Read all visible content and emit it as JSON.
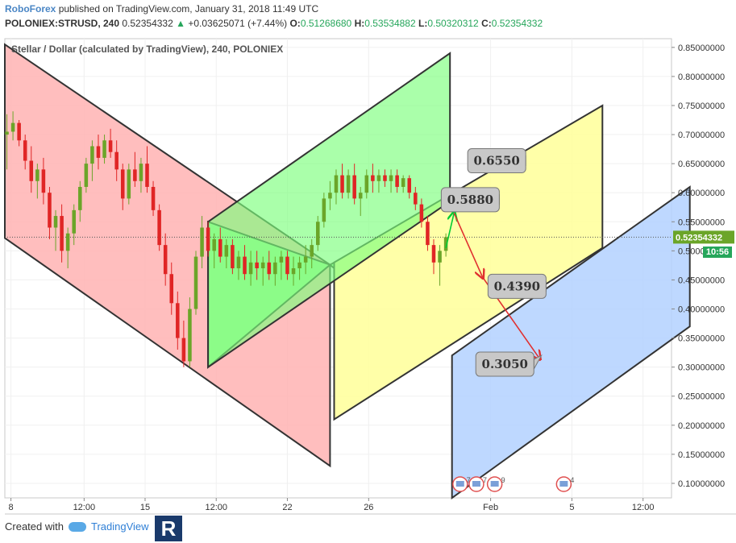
{
  "header": {
    "brand": "RoboForex",
    "published": "published on TradingView.com, January 31, 2018 11:49 UTC",
    "symbol": "POLONIEX:STRUSD, 240",
    "last": "0.52354332",
    "change_arrow": "▲",
    "change": "+0.03625071 (+7.44%)",
    "o_label": "O:",
    "o_value": "0.51268680",
    "h_label": "H:",
    "h_value": "0.53534882",
    "l_label": "L:",
    "l_value": "0.50320312",
    "c_label": "C:",
    "c_value": "0.52354332"
  },
  "chart_data": {
    "type": "candlestick",
    "title": "Stellar / Dollar (calculated by TradingView), 240, POLONIEX",
    "price_axis": {
      "ticks": [
        "0.85000000",
        "0.80000000",
        "0.75000000",
        "0.70000000",
        "0.65000000",
        "0.60000000",
        "0.55000000",
        "0.50000000",
        "0.45000000",
        "0.40000000",
        "0.35000000",
        "0.30000000",
        "0.25000000",
        "0.20000000",
        "0.15000000",
        "0.10000000"
      ],
      "range": [
        0.075,
        0.865
      ],
      "current_price": "0.52354332",
      "current_price_value": 0.52354332,
      "countdown": "10:56"
    },
    "time_axis": {
      "ticks": [
        {
          "label": "8",
          "day": 8.4
        },
        {
          "label": "12:00",
          "day": 12.0
        },
        {
          "label": "15",
          "day": 15.0
        },
        {
          "label": "12:00",
          "day": 18.5
        },
        {
          "label": "22",
          "day": 22.0
        },
        {
          "label": "26",
          "day": 26.0
        },
        {
          "label": "Feb",
          "day": 32.0
        },
        {
          "label": "5",
          "day": 36.0
        },
        {
          "label": "12:00",
          "day": 39.5
        }
      ],
      "range": [
        8.1,
        40.9
      ]
    },
    "channels": [
      {
        "name": "red",
        "color": "#ffb3b3",
        "points": [
          [
            8.1,
            0.855
          ],
          [
            24.1,
            0.476
          ],
          [
            24.1,
            0.13
          ],
          [
            8.1,
            0.522
          ]
        ]
      },
      {
        "name": "green",
        "color": "#99ff99",
        "points": [
          [
            18.1,
            0.55
          ],
          [
            24.1,
            0.476
          ],
          [
            24.3,
            0.48
          ],
          [
            24.3,
            0.47
          ],
          [
            24.1,
            0.476
          ],
          [
            18.1,
            0.3
          ]
        ]
      },
      {
        "name": "yellow",
        "color": "#ffff99",
        "points": [
          [
            24.3,
            0.48
          ],
          [
            37.5,
            0.75
          ],
          [
            37.5,
            0.505
          ],
          [
            24.3,
            0.21
          ]
        ]
      },
      {
        "name": "blue",
        "color": "#b3d1ff",
        "points": [
          [
            30.1,
            0.32
          ],
          [
            41.8,
            0.61
          ],
          [
            41.8,
            0.37
          ],
          [
            30.1,
            0.075
          ]
        ]
      }
    ],
    "green_box_top": [
      30.0,
      0.84
    ],
    "candles": [
      {
        "day": 8.2,
        "o": 0.7,
        "h": 0.735,
        "l": 0.64,
        "c": 0.705
      },
      {
        "day": 8.5,
        "o": 0.705,
        "h": 0.74,
        "l": 0.69,
        "c": 0.72
      },
      {
        "day": 8.8,
        "o": 0.72,
        "h": 0.725,
        "l": 0.68,
        "c": 0.69
      },
      {
        "day": 9.1,
        "o": 0.69,
        "h": 0.7,
        "l": 0.64,
        "c": 0.655
      },
      {
        "day": 9.4,
        "o": 0.655,
        "h": 0.68,
        "l": 0.6,
        "c": 0.62
      },
      {
        "day": 9.7,
        "o": 0.62,
        "h": 0.65,
        "l": 0.59,
        "c": 0.64
      },
      {
        "day": 10.0,
        "o": 0.64,
        "h": 0.66,
        "l": 0.58,
        "c": 0.6
      },
      {
        "day": 10.3,
        "o": 0.6,
        "h": 0.61,
        "l": 0.52,
        "c": 0.54
      },
      {
        "day": 10.6,
        "o": 0.54,
        "h": 0.57,
        "l": 0.5,
        "c": 0.56
      },
      {
        "day": 10.9,
        "o": 0.56,
        "h": 0.58,
        "l": 0.48,
        "c": 0.5
      },
      {
        "day": 11.2,
        "o": 0.5,
        "h": 0.54,
        "l": 0.47,
        "c": 0.53
      },
      {
        "day": 11.5,
        "o": 0.53,
        "h": 0.58,
        "l": 0.51,
        "c": 0.57
      },
      {
        "day": 11.8,
        "o": 0.57,
        "h": 0.62,
        "l": 0.55,
        "c": 0.61
      },
      {
        "day": 12.1,
        "o": 0.61,
        "h": 0.66,
        "l": 0.6,
        "c": 0.65
      },
      {
        "day": 12.4,
        "o": 0.65,
        "h": 0.69,
        "l": 0.62,
        "c": 0.68
      },
      {
        "day": 12.7,
        "o": 0.68,
        "h": 0.7,
        "l": 0.64,
        "c": 0.66
      },
      {
        "day": 13.0,
        "o": 0.66,
        "h": 0.7,
        "l": 0.65,
        "c": 0.69
      },
      {
        "day": 13.3,
        "o": 0.69,
        "h": 0.71,
        "l": 0.66,
        "c": 0.67
      },
      {
        "day": 13.6,
        "o": 0.67,
        "h": 0.69,
        "l": 0.62,
        "c": 0.64
      },
      {
        "day": 13.9,
        "o": 0.64,
        "h": 0.65,
        "l": 0.57,
        "c": 0.59
      },
      {
        "day": 14.2,
        "o": 0.59,
        "h": 0.65,
        "l": 0.58,
        "c": 0.64
      },
      {
        "day": 14.5,
        "o": 0.64,
        "h": 0.67,
        "l": 0.61,
        "c": 0.62
      },
      {
        "day": 14.8,
        "o": 0.62,
        "h": 0.66,
        "l": 0.6,
        "c": 0.65
      },
      {
        "day": 15.1,
        "o": 0.65,
        "h": 0.68,
        "l": 0.6,
        "c": 0.61
      },
      {
        "day": 15.4,
        "o": 0.61,
        "h": 0.62,
        "l": 0.56,
        "c": 0.57
      },
      {
        "day": 15.7,
        "o": 0.57,
        "h": 0.58,
        "l": 0.5,
        "c": 0.51
      },
      {
        "day": 16.0,
        "o": 0.51,
        "h": 0.53,
        "l": 0.44,
        "c": 0.46
      },
      {
        "day": 16.3,
        "o": 0.46,
        "h": 0.48,
        "l": 0.39,
        "c": 0.41
      },
      {
        "day": 16.6,
        "o": 0.41,
        "h": 0.43,
        "l": 0.33,
        "c": 0.35
      },
      {
        "day": 16.9,
        "o": 0.35,
        "h": 0.38,
        "l": 0.3,
        "c": 0.31
      },
      {
        "day": 17.2,
        "o": 0.31,
        "h": 0.42,
        "l": 0.3,
        "c": 0.4
      },
      {
        "day": 17.5,
        "o": 0.4,
        "h": 0.5,
        "l": 0.39,
        "c": 0.49
      },
      {
        "day": 17.8,
        "o": 0.49,
        "h": 0.56,
        "l": 0.47,
        "c": 0.54
      },
      {
        "day": 18.1,
        "o": 0.54,
        "h": 0.55,
        "l": 0.49,
        "c": 0.5
      },
      {
        "day": 18.4,
        "o": 0.5,
        "h": 0.53,
        "l": 0.47,
        "c": 0.52
      },
      {
        "day": 18.7,
        "o": 0.52,
        "h": 0.54,
        "l": 0.48,
        "c": 0.49
      },
      {
        "day": 19.0,
        "o": 0.49,
        "h": 0.52,
        "l": 0.47,
        "c": 0.51
      },
      {
        "day": 19.3,
        "o": 0.51,
        "h": 0.52,
        "l": 0.46,
        "c": 0.47
      },
      {
        "day": 19.6,
        "o": 0.47,
        "h": 0.5,
        "l": 0.45,
        "c": 0.49
      },
      {
        "day": 19.9,
        "o": 0.49,
        "h": 0.51,
        "l": 0.45,
        "c": 0.46
      },
      {
        "day": 20.2,
        "o": 0.46,
        "h": 0.5,
        "l": 0.44,
        "c": 0.48
      },
      {
        "day": 20.5,
        "o": 0.48,
        "h": 0.5,
        "l": 0.45,
        "c": 0.47
      },
      {
        "day": 20.8,
        "o": 0.47,
        "h": 0.49,
        "l": 0.44,
        "c": 0.48
      },
      {
        "day": 21.1,
        "o": 0.48,
        "h": 0.5,
        "l": 0.45,
        "c": 0.46
      },
      {
        "day": 21.4,
        "o": 0.46,
        "h": 0.49,
        "l": 0.44,
        "c": 0.48
      },
      {
        "day": 21.7,
        "o": 0.48,
        "h": 0.5,
        "l": 0.45,
        "c": 0.49
      },
      {
        "day": 22.0,
        "o": 0.49,
        "h": 0.5,
        "l": 0.45,
        "c": 0.46
      },
      {
        "day": 22.3,
        "o": 0.46,
        "h": 0.49,
        "l": 0.44,
        "c": 0.47
      },
      {
        "day": 22.6,
        "o": 0.47,
        "h": 0.49,
        "l": 0.45,
        "c": 0.48
      },
      {
        "day": 22.9,
        "o": 0.48,
        "h": 0.51,
        "l": 0.46,
        "c": 0.49
      },
      {
        "day": 23.2,
        "o": 0.49,
        "h": 0.52,
        "l": 0.47,
        "c": 0.51
      },
      {
        "day": 23.5,
        "o": 0.51,
        "h": 0.56,
        "l": 0.5,
        "c": 0.55
      },
      {
        "day": 23.8,
        "o": 0.55,
        "h": 0.6,
        "l": 0.54,
        "c": 0.59
      },
      {
        "day": 24.1,
        "o": 0.59,
        "h": 0.62,
        "l": 0.57,
        "c": 0.6
      },
      {
        "day": 24.4,
        "o": 0.6,
        "h": 0.64,
        "l": 0.58,
        "c": 0.63
      },
      {
        "day": 24.7,
        "o": 0.63,
        "h": 0.65,
        "l": 0.59,
        "c": 0.6
      },
      {
        "day": 25.0,
        "o": 0.6,
        "h": 0.64,
        "l": 0.59,
        "c": 0.63
      },
      {
        "day": 25.3,
        "o": 0.63,
        "h": 0.65,
        "l": 0.58,
        "c": 0.59
      },
      {
        "day": 25.6,
        "o": 0.59,
        "h": 0.61,
        "l": 0.56,
        "c": 0.6
      },
      {
        "day": 25.9,
        "o": 0.6,
        "h": 0.64,
        "l": 0.59,
        "c": 0.63
      },
      {
        "day": 26.2,
        "o": 0.63,
        "h": 0.65,
        "l": 0.6,
        "c": 0.62
      },
      {
        "day": 26.5,
        "o": 0.62,
        "h": 0.64,
        "l": 0.6,
        "c": 0.63
      },
      {
        "day": 26.8,
        "o": 0.63,
        "h": 0.64,
        "l": 0.61,
        "c": 0.62
      },
      {
        "day": 27.1,
        "o": 0.62,
        "h": 0.64,
        "l": 0.6,
        "c": 0.63
      },
      {
        "day": 27.4,
        "o": 0.63,
        "h": 0.64,
        "l": 0.6,
        "c": 0.61
      },
      {
        "day": 27.7,
        "o": 0.61,
        "h": 0.63,
        "l": 0.6,
        "c": 0.625
      },
      {
        "day": 28.0,
        "o": 0.625,
        "h": 0.63,
        "l": 0.59,
        "c": 0.6
      },
      {
        "day": 28.3,
        "o": 0.6,
        "h": 0.61,
        "l": 0.57,
        "c": 0.58
      },
      {
        "day": 28.6,
        "o": 0.58,
        "h": 0.59,
        "l": 0.54,
        "c": 0.55
      },
      {
        "day": 28.9,
        "o": 0.55,
        "h": 0.56,
        "l": 0.5,
        "c": 0.51
      },
      {
        "day": 29.2,
        "o": 0.51,
        "h": 0.52,
        "l": 0.46,
        "c": 0.48
      },
      {
        "day": 29.5,
        "o": 0.48,
        "h": 0.51,
        "l": 0.44,
        "c": 0.5
      },
      {
        "day": 29.8,
        "o": 0.5,
        "h": 0.53,
        "l": 0.49,
        "c": 0.52354332
      }
    ],
    "target_labels": [
      {
        "text": "0.6550",
        "tip": [
          31.1,
          0.64
        ],
        "box_center": [
          32.3,
          0.655
        ]
      },
      {
        "text": "0.5880",
        "tip": [
          29.9,
          0.568
        ],
        "box_center": [
          31.0,
          0.588
        ]
      },
      {
        "text": "0.4390",
        "tip": [
          32.3,
          0.451
        ],
        "box_center": [
          33.3,
          0.439
        ]
      },
      {
        "text": "0.3050",
        "tip": [
          34.5,
          0.32
        ],
        "box_center": [
          32.7,
          0.305
        ]
      }
    ],
    "arrows": [
      {
        "color": "#00cc33",
        "from": [
          29.8,
          0.505
        ],
        "to": [
          30.2,
          0.565
        ]
      },
      {
        "color": "#e03030",
        "from": [
          30.2,
          0.565
        ],
        "to": [
          31.6,
          0.455
        ]
      },
      {
        "color": "#e03030",
        "from": [
          31.6,
          0.455
        ],
        "to": [
          34.4,
          0.315
        ]
      }
    ],
    "events": [
      {
        "day": 30.5,
        "count": "7"
      },
      {
        "day": 31.3,
        "count": "7"
      },
      {
        "day": 32.2,
        "count": "9"
      },
      {
        "day": 35.6,
        "count": "4"
      }
    ]
  },
  "footer": {
    "created_with": "Created with",
    "tradingview": "TradingView",
    "logo_letter": "R"
  }
}
